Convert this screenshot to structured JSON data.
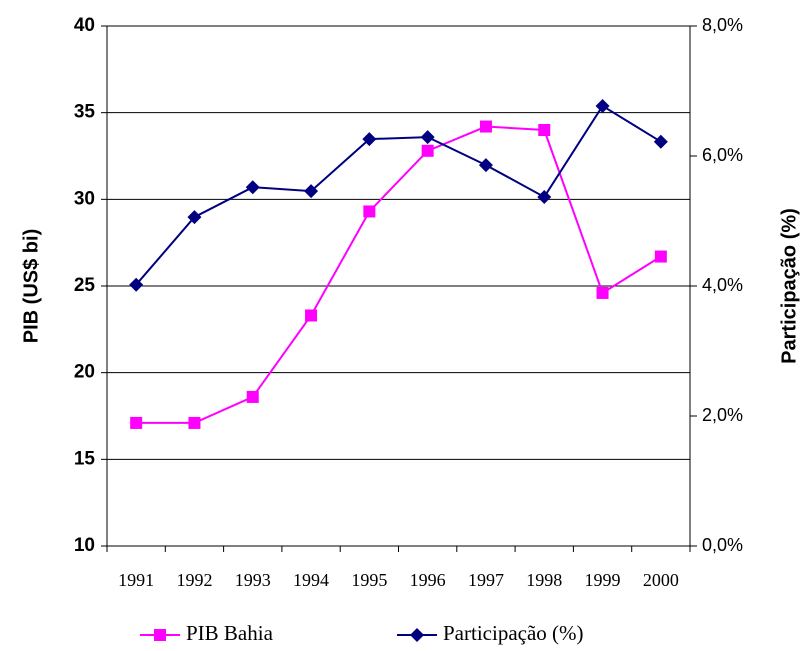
{
  "chart_data": {
    "type": "line",
    "categories": [
      "1991",
      "1992",
      "1993",
      "1994",
      "1995",
      "1996",
      "1997",
      "1998",
      "1999",
      "2000"
    ],
    "series": [
      {
        "name": "PIB Bahia",
        "color": "#ff00ff",
        "marker": "square",
        "values": [
          17.1,
          17.1,
          18.6,
          23.3,
          29.3,
          32.8,
          34.2,
          34.0,
          24.6,
          26.7
        ]
      },
      {
        "name": "Participação (%)",
        "color": "#000080",
        "marker": "diamond",
        "axis": "y2",
        "values": [
          4.02,
          5.06,
          5.52,
          5.46,
          6.26,
          6.29,
          5.86,
          5.37,
          6.77,
          6.22
        ]
      }
    ],
    "ylabel": "PIB (US$ bi)",
    "y2label": "Participação (%)",
    "ylim": [
      10,
      40
    ],
    "yticks": [
      10,
      15,
      20,
      25,
      30,
      35,
      40
    ],
    "y2lim": [
      0,
      8
    ],
    "y2ticks": [
      {
        "value": 0,
        "label": "0,0%"
      },
      {
        "value": 2,
        "label": "2,0%"
      },
      {
        "value": 4,
        "label": "4,0%"
      },
      {
        "value": 6,
        "label": "6,0%"
      },
      {
        "value": 8,
        "label": "8,0%"
      }
    ],
    "grid": true,
    "legend": "bottom"
  }
}
